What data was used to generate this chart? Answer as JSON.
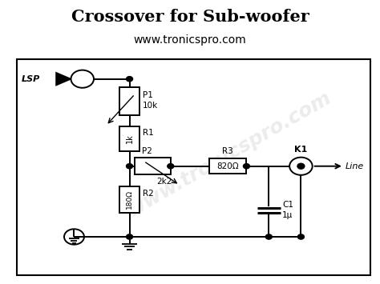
{
  "title": "Crossover for Sub-woofer",
  "subtitle": "www.tronicspro.com",
  "title_fontsize": 15,
  "subtitle_fontsize": 10,
  "bg_color": "#ffffff",
  "border_color": "#000000",
  "watermark_text": "www.tronicspro.com",
  "watermark_color": "#c0c0c0",
  "watermark_alpha": 0.3,
  "components": {
    "P1": {
      "label": "P1",
      "value": "10k"
    },
    "R1": {
      "label": "R1",
      "value": "1k"
    },
    "P2": {
      "label": "P2",
      "value": "2k2"
    },
    "R2": {
      "label": "R2",
      "value": "180Ω"
    },
    "R3": {
      "label": "R3",
      "value": "820Ω"
    },
    "C1": {
      "label": "C1",
      "value": "1μ"
    },
    "K1": {
      "label": "K1"
    },
    "LSP": {
      "label": "LSP"
    },
    "Line": {
      "label": "Line"
    }
  }
}
